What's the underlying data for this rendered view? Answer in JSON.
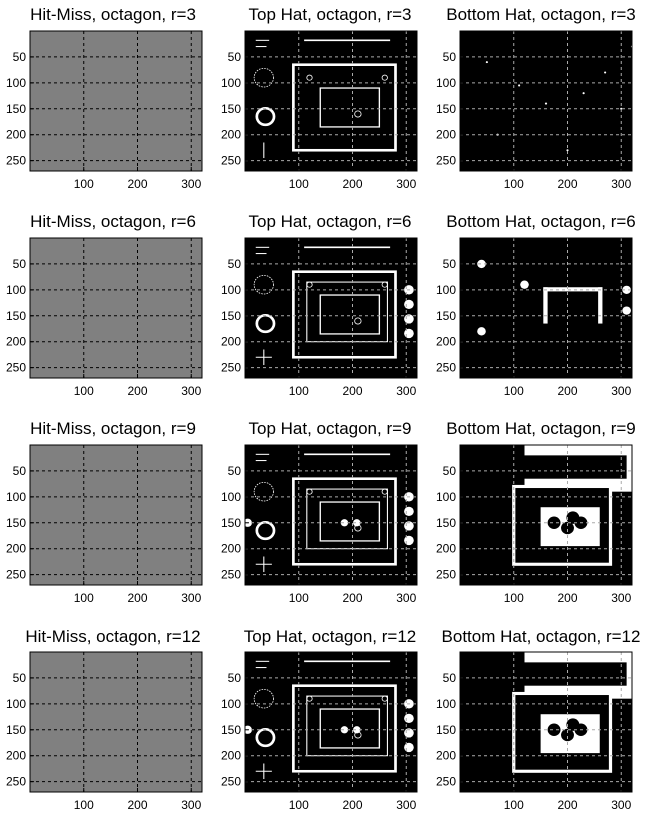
{
  "figure": {
    "rows": [
      {
        "radius_label": "r=3",
        "panels": [
          {
            "kind": "hit-miss",
            "title": "Hit-Miss, octagon, r=3"
          },
          {
            "kind": "top-hat",
            "title": "Top Hat, octagon, r=3"
          },
          {
            "kind": "bottom-hat",
            "title": "Bottom Hat, octagon, r=3"
          }
        ]
      },
      {
        "radius_label": "r=6",
        "panels": [
          {
            "kind": "hit-miss",
            "title": "Hit-Miss, octagon, r=6"
          },
          {
            "kind": "top-hat",
            "title": "Top Hat, octagon, r=6"
          },
          {
            "kind": "bottom-hat",
            "title": "Bottom Hat, octagon, r=6"
          }
        ]
      },
      {
        "radius_label": "r=9",
        "panels": [
          {
            "kind": "hit-miss",
            "title": "Hit-Miss, octagon, r=9"
          },
          {
            "kind": "top-hat",
            "title": "Top Hat, octagon, r=9"
          },
          {
            "kind": "bottom-hat",
            "title": "Bottom Hat, octagon, r=9"
          }
        ]
      },
      {
        "radius_label": "r=12",
        "panels": [
          {
            "kind": "hit-miss",
            "title": "Hit-Miss, octagon, r=12"
          },
          {
            "kind": "top-hat",
            "title": "Top Hat, octagon, r=12"
          },
          {
            "kind": "bottom-hat",
            "title": "Bottom Hat, octagon, r=12"
          }
        ]
      }
    ],
    "x_ticks": [
      "100",
      "200",
      "300"
    ],
    "y_ticks": [
      "50",
      "100",
      "150",
      "200",
      "250"
    ],
    "colors": {
      "hit_miss_fill": "#808080",
      "image_background": "#000000",
      "image_foreground": "#ffffff",
      "grid": "#000000"
    }
  }
}
